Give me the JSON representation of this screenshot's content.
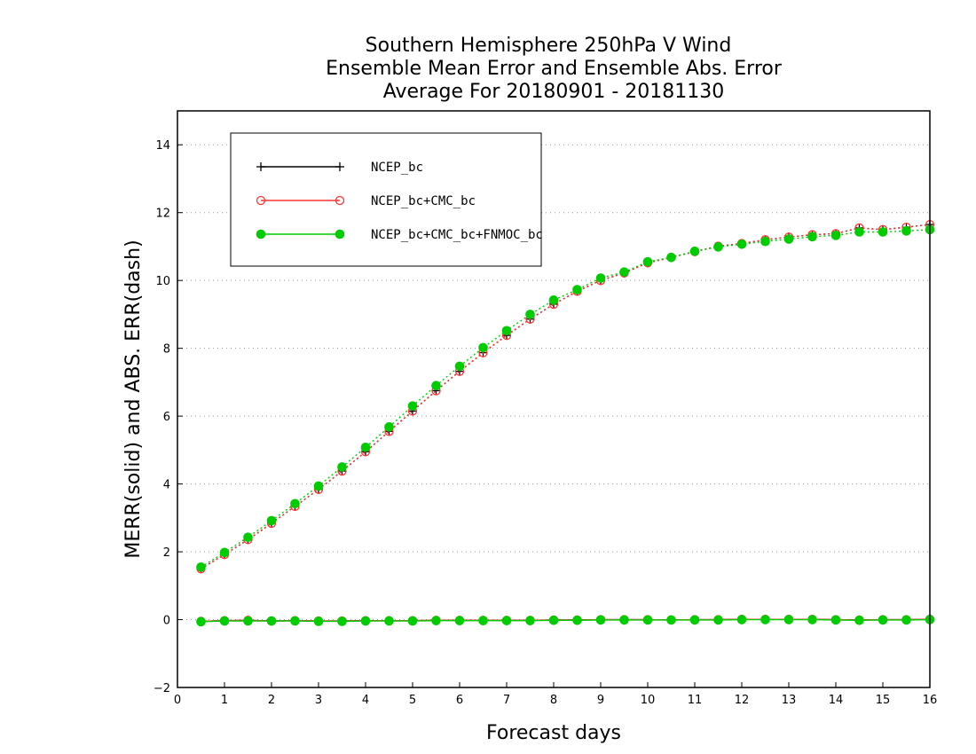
{
  "chart_data": {
    "type": "line",
    "title": [
      "Southern Hemisphere 250hPa V Wind",
      "Ensemble Mean Error and Ensemble Abs. Error",
      "Average For 20180901 - 20181130"
    ],
    "xlabel": "Forecast days",
    "ylabel": "MERR(solid) and ABS. ERR(dash)",
    "xlim": [
      0,
      16
    ],
    "ylim": [
      -2,
      15
    ],
    "xticks": [
      0,
      1,
      2,
      3,
      4,
      5,
      6,
      7,
      8,
      9,
      10,
      11,
      12,
      13,
      14,
      15,
      16
    ],
    "yticks": [
      -2,
      0,
      2,
      4,
      6,
      8,
      10,
      12,
      14
    ],
    "grid": "horizontal-dotted",
    "legend_position": "top-left",
    "x": [
      0.5,
      1.0,
      1.5,
      2.0,
      2.5,
      3.0,
      3.5,
      4.0,
      4.5,
      5.0,
      5.5,
      6.0,
      6.5,
      7.0,
      7.5,
      8.0,
      8.5,
      9.0,
      9.5,
      10.0,
      10.5,
      11.0,
      11.5,
      12.0,
      12.5,
      13.0,
      13.5,
      14.0,
      14.5,
      15.0,
      15.5,
      16.0
    ],
    "series": [
      {
        "name": "NCEP_bc",
        "color": "#000000",
        "marker": "plus",
        "merr": [
          -0.05,
          -0.03,
          -0.02,
          -0.04,
          -0.03,
          -0.04,
          -0.04,
          -0.03,
          -0.03,
          -0.03,
          -0.02,
          -0.02,
          -0.02,
          -0.02,
          -0.02,
          -0.01,
          -0.01,
          0.0,
          0.0,
          0.0,
          -0.01,
          0.0,
          0.0,
          0.01,
          0.01,
          0.01,
          0.01,
          0.0,
          -0.01,
          0.0,
          0.0,
          0.01
        ],
        "abs_err": [
          1.5,
          1.92,
          2.36,
          2.84,
          3.34,
          3.84,
          4.38,
          4.95,
          5.55,
          6.15,
          6.75,
          7.32,
          7.87,
          8.38,
          8.86,
          9.3,
          9.68,
          10.0,
          10.22,
          10.52,
          10.68,
          10.85,
          11.01,
          11.09,
          11.2,
          11.28,
          11.35,
          11.38,
          11.55,
          11.5,
          11.57,
          11.65
        ]
      },
      {
        "name": "NCEP_bc+CMC_bc",
        "color": "#ff3333",
        "marker": "open-circle",
        "merr": [
          -0.05,
          -0.03,
          -0.02,
          -0.04,
          -0.03,
          -0.04,
          -0.04,
          -0.03,
          -0.03,
          -0.03,
          -0.02,
          -0.02,
          -0.02,
          -0.02,
          -0.02,
          -0.01,
          -0.01,
          0.0,
          0.0,
          0.0,
          -0.01,
          0.0,
          0.0,
          0.01,
          0.01,
          0.01,
          0.01,
          0.0,
          -0.01,
          0.0,
          0.0,
          0.01
        ],
        "abs_err": [
          1.5,
          1.92,
          2.36,
          2.84,
          3.34,
          3.84,
          4.38,
          4.95,
          5.55,
          6.15,
          6.75,
          7.32,
          7.87,
          8.38,
          8.86,
          9.3,
          9.68,
          10.0,
          10.22,
          10.52,
          10.68,
          10.85,
          11.01,
          11.09,
          11.2,
          11.28,
          11.35,
          11.38,
          11.55,
          11.5,
          11.57,
          11.65
        ]
      },
      {
        "name": "NCEP_bc+CMC_bc+FNMOC_bc",
        "color": "#00cc00",
        "marker": "filled-circle",
        "merr": [
          -0.06,
          -0.04,
          -0.04,
          -0.04,
          -0.04,
          -0.05,
          -0.05,
          -0.04,
          -0.04,
          -0.04,
          -0.03,
          -0.03,
          -0.03,
          -0.03,
          -0.03,
          -0.02,
          -0.02,
          -0.01,
          -0.01,
          -0.01,
          -0.01,
          -0.01,
          -0.01,
          0.0,
          0.0,
          0.0,
          0.0,
          -0.01,
          -0.02,
          -0.01,
          -0.01,
          0.0
        ],
        "abs_err": [
          1.55,
          1.98,
          2.43,
          2.92,
          3.42,
          3.94,
          4.5,
          5.08,
          5.68,
          6.3,
          6.9,
          7.47,
          8.02,
          8.52,
          9.0,
          9.42,
          9.73,
          10.07,
          10.25,
          10.55,
          10.68,
          10.86,
          10.99,
          11.07,
          11.15,
          11.22,
          11.29,
          11.33,
          11.43,
          11.43,
          11.46,
          11.5
        ]
      }
    ]
  }
}
